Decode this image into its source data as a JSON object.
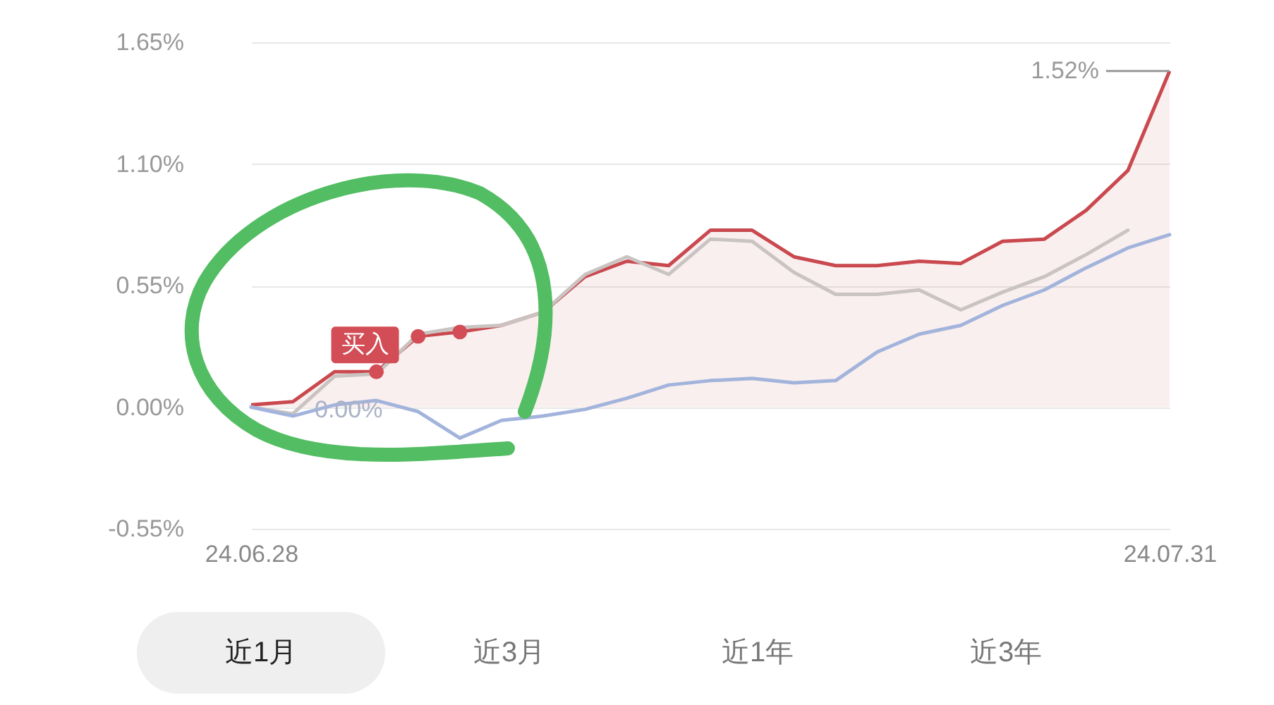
{
  "chart_data": {
    "type": "line",
    "categories": [
      "24.06.28",
      null,
      null,
      null,
      null,
      null,
      null,
      null,
      null,
      null,
      null,
      null,
      null,
      null,
      null,
      null,
      null,
      null,
      null,
      null,
      null,
      null,
      "24.07.31"
    ],
    "series": [
      {
        "type": "area",
        "color": "#c9494f",
        "values": [
          0.01,
          0.025,
          0.16,
          0.16,
          0.32,
          0.34,
          0.37,
          0.43,
          0.59,
          0.66,
          0.64,
          0.8,
          0.8,
          0.68,
          0.64,
          0.64,
          0.66,
          0.65,
          0.75,
          0.76,
          0.89,
          1.07,
          1.52
        ]
      },
      {
        "color": "#c9c3c1",
        "values": [
          0,
          -0.03,
          0.14,
          0.15,
          0.33,
          0.36,
          0.37,
          0.43,
          0.6,
          0.68,
          0.6,
          0.76,
          0.75,
          0.61,
          0.51,
          0.51,
          0.53,
          0.44,
          0.52,
          0.59,
          0.69,
          0.8,
          null
        ]
      },
      {
        "color": "#a3b4dc",
        "values": [
          0,
          -0.04,
          0.01,
          0.03,
          -0.02,
          -0.14,
          -0.06,
          -0.04,
          -0.01,
          0.04,
          0.1,
          0.12,
          0.13,
          0.11,
          0.12,
          0.25,
          0.33,
          0.37,
          0.46,
          0.53,
          0.63,
          0.72,
          0.78
        ]
      },
      {
        "type": "scatter",
        "name": "买入",
        "color": "#d24d55",
        "values": [
          null,
          null,
          null,
          0.16,
          0.32,
          0.34,
          null,
          null,
          null,
          null,
          null,
          null,
          null,
          null,
          null,
          null,
          null,
          null,
          null,
          null,
          null,
          null,
          null
        ]
      }
    ],
    "ylim": [
      -0.55,
      1.65
    ],
    "yticks": [
      {
        "value": -0.55,
        "label": "-0.55%"
      },
      {
        "value": 0,
        "label": "0.00%"
      },
      {
        "value": 0.55,
        "label": "0.55%"
      },
      {
        "value": 1.1,
        "label": "1.10%"
      },
      {
        "value": 1.65,
        "label": "1.65%"
      }
    ],
    "grid": "y",
    "annotations": [
      {
        "text": "0.00%",
        "x": "24.06.28",
        "y": 0
      },
      {
        "text": "1.52%",
        "x": "24.07.31",
        "y": 1.52
      },
      "近1月",
      "近3月",
      "近1年",
      "近3年"
    ]
  }
}
